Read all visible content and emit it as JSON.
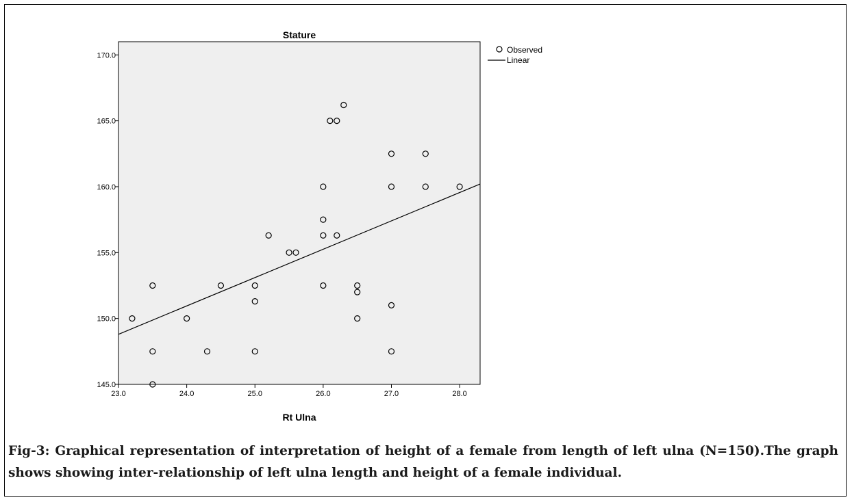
{
  "chart_data": {
    "type": "scatter",
    "title": "Stature",
    "xlabel": "Rt Ulna",
    "ylabel": "",
    "xlim": [
      23.0,
      28.3
    ],
    "ylim": [
      145.0,
      171.0
    ],
    "xticks": [
      "23.0",
      "24.0",
      "25.0",
      "26.0",
      "27.0",
      "28.0"
    ],
    "yticks": [
      "145.0",
      "150.0",
      "155.0",
      "160.0",
      "165.0",
      "170.0"
    ],
    "grid": false,
    "legend": {
      "placement": "right",
      "entries": [
        "Observed",
        "Linear"
      ]
    },
    "series": [
      {
        "name": "Observed",
        "points": [
          [
            23.2,
            150.0
          ],
          [
            23.5,
            152.5
          ],
          [
            23.5,
            147.5
          ],
          [
            23.5,
            145.0
          ],
          [
            24.0,
            150.0
          ],
          [
            24.3,
            147.5
          ],
          [
            24.5,
            152.5
          ],
          [
            25.0,
            152.5
          ],
          [
            25.0,
            151.3
          ],
          [
            25.0,
            147.5
          ],
          [
            25.2,
            156.3
          ],
          [
            25.5,
            155.0
          ],
          [
            25.6,
            155.0
          ],
          [
            26.0,
            160.0
          ],
          [
            26.0,
            157.5
          ],
          [
            26.0,
            156.3
          ],
          [
            26.0,
            152.5
          ],
          [
            26.1,
            165.0
          ],
          [
            26.2,
            165.0
          ],
          [
            26.2,
            156.3
          ],
          [
            26.3,
            166.2
          ],
          [
            26.5,
            152.5
          ],
          [
            26.5,
            152.0
          ],
          [
            26.5,
            150.0
          ],
          [
            27.0,
            162.5
          ],
          [
            27.0,
            160.0
          ],
          [
            27.0,
            151.0
          ],
          [
            27.0,
            147.5
          ],
          [
            27.5,
            162.5
          ],
          [
            27.5,
            160.0
          ],
          [
            28.0,
            160.0
          ]
        ]
      },
      {
        "name": "Linear",
        "line": [
          [
            23.0,
            148.8
          ],
          [
            28.3,
            160.2
          ]
        ]
      }
    ]
  },
  "caption": "Fig-3: Graphical representation of interpretation of height of a female from length of left ulna (N=150).The graph shows showing inter-relationship of left ulna length and height of a female individual."
}
